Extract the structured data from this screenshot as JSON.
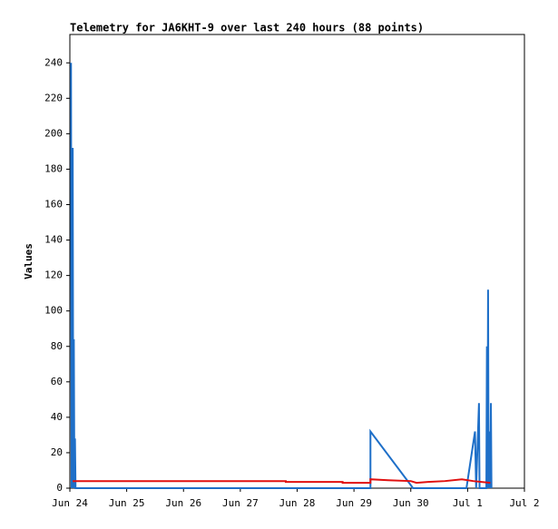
{
  "chart_data": {
    "type": "line",
    "title": "Telemetry for JA6KHT-9 over last 240 hours (88 points)",
    "y_label": "Values",
    "xlim": [
      0,
      8
    ],
    "ylim": [
      0,
      256
    ],
    "xticks": [
      {
        "value": 0,
        "label": "Jun 24"
      },
      {
        "value": 1,
        "label": "Jun 25"
      },
      {
        "value": 2,
        "label": "Jun 26"
      },
      {
        "value": 3,
        "label": "Jun 27"
      },
      {
        "value": 4,
        "label": "Jun 28"
      },
      {
        "value": 5,
        "label": "Jun 29"
      },
      {
        "value": 6,
        "label": "Jun 30"
      },
      {
        "value": 7,
        "label": "Jul 1"
      },
      {
        "value": 8,
        "label": "Jul 2"
      }
    ],
    "yticks": [
      0,
      20,
      40,
      60,
      80,
      100,
      120,
      140,
      160,
      180,
      200,
      220,
      240
    ],
    "grid": false,
    "series": [
      {
        "color": "#1e6fc8",
        "x": [
          0.02,
          0.03,
          0.05,
          0.06,
          0.07,
          0.08,
          0.09,
          0.1,
          5.29,
          5.29,
          6.04,
          6.98,
          7.13,
          7.15,
          7.2,
          7.21,
          7.33,
          7.34,
          7.35,
          7.36,
          7.37,
          7.39,
          7.4,
          7.41,
          7.42
        ],
        "values": [
          240,
          0,
          192,
          0,
          84,
          0,
          28,
          0,
          0,
          32,
          0,
          0,
          32,
          0,
          48,
          0,
          0,
          80,
          0,
          112,
          0,
          32,
          0,
          48,
          0
        ]
      },
      {
        "color": "#e01010",
        "x": [
          0.05,
          3.8,
          3.8,
          4.8,
          4.8,
          5.29,
          5.29,
          5.6,
          6.0,
          6.1,
          6.3,
          6.6,
          6.9,
          7.1,
          7.4
        ],
        "values": [
          4,
          4,
          3.5,
          3.5,
          3,
          3,
          5,
          4.5,
          4,
          3,
          3.5,
          4,
          5,
          4,
          3
        ]
      }
    ]
  }
}
